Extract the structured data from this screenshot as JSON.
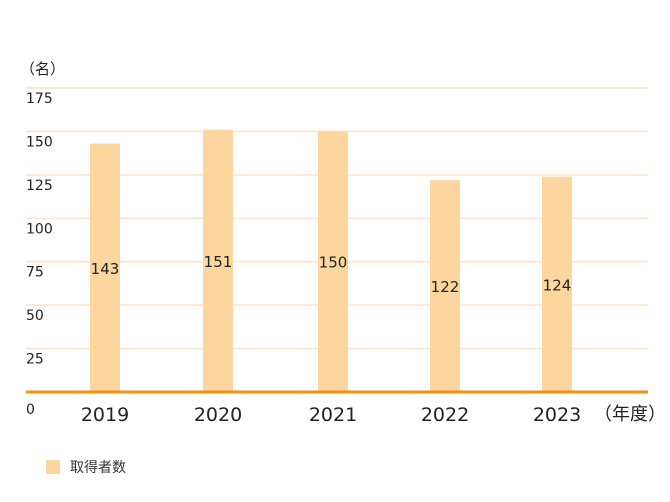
{
  "chart_data": {
    "type": "bar",
    "categories": [
      "2019",
      "2020",
      "2021",
      "2022",
      "2023"
    ],
    "series": [
      {
        "name": "取得者数",
        "values": [
          143,
          151,
          150,
          122,
          124
        ]
      }
    ],
    "ylabel": "（名）",
    "xlabel": "（年度）",
    "ylim": [
      0,
      175
    ],
    "yticks": [
      0,
      25,
      50,
      75,
      100,
      125,
      150,
      175
    ],
    "grid": true,
    "legend": "bottom-left"
  },
  "colors": {
    "bar": "#fdd59f",
    "gridline": "#fde8d2",
    "baseline": "#f0900f"
  }
}
